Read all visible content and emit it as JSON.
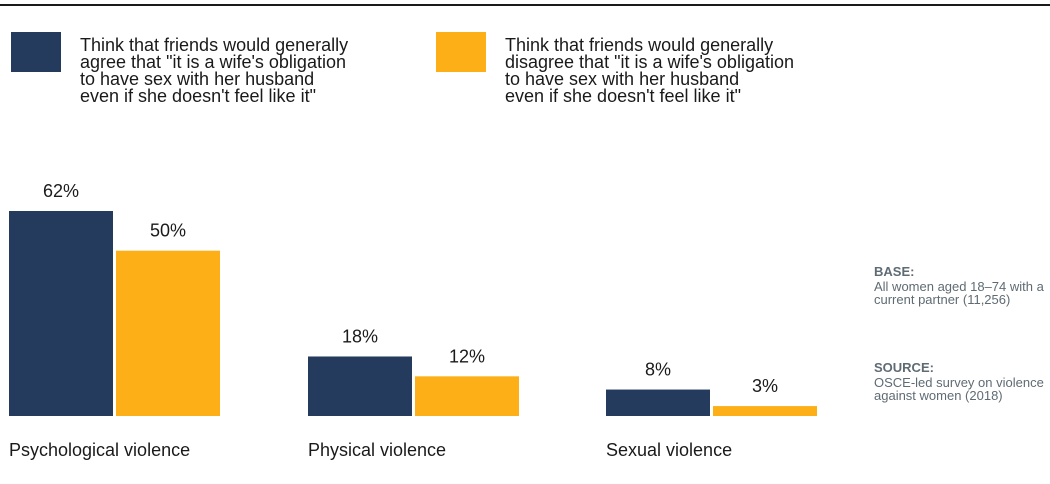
{
  "chart_data": {
    "type": "bar",
    "categories": [
      "Psychological violence",
      "Physical violence",
      "Sexual violence"
    ],
    "series": [
      {
        "name": "Think that friends would generally agree that \"it is a wife's obligation to have sex with her husband even if she doesn't feel like it\"",
        "values": [
          62,
          18,
          8
        ],
        "value_labels": [
          "62%",
          "18%",
          "8%"
        ]
      },
      {
        "name": "Think that friends would generally disagree that \"it is a wife's obligation to have sex with her husband even if she doesn't feel like it\"",
        "values": [
          50,
          12,
          3
        ],
        "value_labels": [
          "50%",
          "12%",
          "3%"
        ]
      }
    ],
    "ylim": [
      0,
      62
    ],
    "grid": false,
    "legend_position": "top"
  },
  "legend": {
    "agree_lines": [
      "Think that friends would generally",
      "agree that \"it is a wife's obligation",
      "to have sex with her husband",
      "even if she doesn't feel like it\""
    ],
    "disagree_lines": [
      "Think that friends would generally",
      "disagree that \"it is a wife's obligation",
      "to have sex with her husband",
      "even if she doesn't feel like it\""
    ]
  },
  "notes": {
    "base_heading": "BASE:",
    "base_text": "All women aged 18–74 with a current partner (11,256)",
    "source_heading": "SOURCE:",
    "source_text": "OSCE-led survey on violence against women (2018)"
  },
  "colors": {
    "agree": "#253b5e",
    "disagree": "#fdaf17",
    "note": "#5f6b73"
  }
}
